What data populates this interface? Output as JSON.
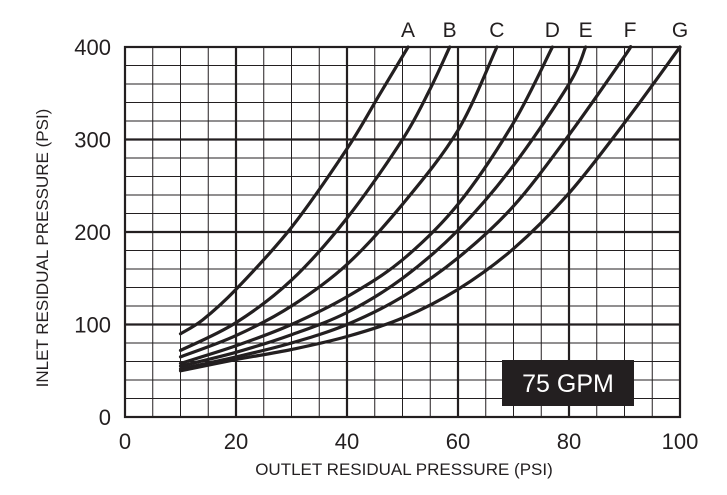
{
  "chart_data": {
    "type": "line",
    "xlabel": "OUTLET RESIDUAL PRESSURE (PSI)",
    "ylabel": "INLET RESIDUAL PRESSURE (PSI)",
    "xlim": [
      0,
      100
    ],
    "ylim": [
      0,
      400
    ],
    "x_ticks": [
      "0",
      "20",
      "40",
      "60",
      "80",
      "100"
    ],
    "y_ticks": [
      "0",
      "100",
      "200",
      "300",
      "400"
    ],
    "grid": true,
    "annotation": "75 GPM",
    "series": [
      {
        "name": "A",
        "points": [
          [
            10,
            90
          ],
          [
            14,
            105
          ],
          [
            20,
            138
          ],
          [
            30,
            205
          ],
          [
            40,
            290
          ],
          [
            46,
            350
          ],
          [
            51,
            400
          ]
        ]
      },
      {
        "name": "B",
        "points": [
          [
            10,
            72
          ],
          [
            20,
            102
          ],
          [
            30,
            148
          ],
          [
            40,
            215
          ],
          [
            50,
            300
          ],
          [
            55,
            355
          ],
          [
            58.5,
            400
          ]
        ]
      },
      {
        "name": "C",
        "points": [
          [
            10,
            65
          ],
          [
            20,
            88
          ],
          [
            30,
            120
          ],
          [
            40,
            165
          ],
          [
            50,
            230
          ],
          [
            60,
            310
          ],
          [
            67,
            400
          ]
        ]
      },
      {
        "name": "D",
        "points": [
          [
            10,
            58
          ],
          [
            20,
            77
          ],
          [
            30,
            100
          ],
          [
            40,
            130
          ],
          [
            50,
            170
          ],
          [
            60,
            230
          ],
          [
            70,
            318
          ],
          [
            77,
            400
          ]
        ]
      },
      {
        "name": "E",
        "points": [
          [
            10,
            55
          ],
          [
            20,
            70
          ],
          [
            30,
            89
          ],
          [
            40,
            113
          ],
          [
            50,
            150
          ],
          [
            60,
            202
          ],
          [
            70,
            272
          ],
          [
            80,
            360
          ],
          [
            83,
            400
          ]
        ]
      },
      {
        "name": "F",
        "points": [
          [
            10,
            52
          ],
          [
            20,
            65
          ],
          [
            30,
            80
          ],
          [
            40,
            100
          ],
          [
            50,
            130
          ],
          [
            60,
            172
          ],
          [
            70,
            228
          ],
          [
            80,
            305
          ],
          [
            90,
            390
          ],
          [
            91,
            400
          ]
        ]
      },
      {
        "name": "G",
        "points": [
          [
            10,
            50
          ],
          [
            20,
            62
          ],
          [
            30,
            73
          ],
          [
            40,
            87
          ],
          [
            50,
            107
          ],
          [
            60,
            138
          ],
          [
            70,
            182
          ],
          [
            80,
            242
          ],
          [
            90,
            318
          ],
          [
            100,
            400
          ]
        ]
      }
    ]
  }
}
